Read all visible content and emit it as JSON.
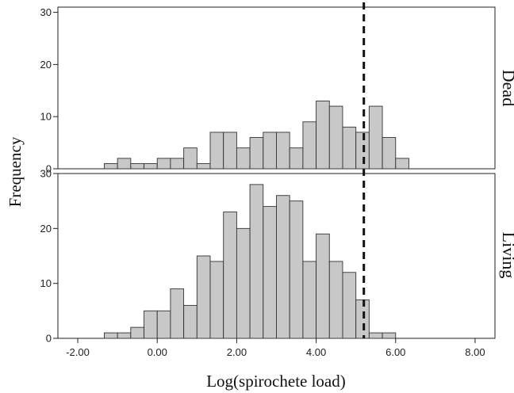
{
  "chart_data": {
    "type": "bar",
    "subtype": "histogram",
    "xlabel": "Log(spirochete load)",
    "ylabel": "Frequency",
    "xlim": [
      -2.5,
      8.5
    ],
    "x_ticks": [
      "-2.00",
      "0.00",
      "2.00",
      "4.00",
      "6.00",
      "8.00"
    ],
    "x_tick_values": [
      -2,
      0,
      2,
      4,
      6,
      8
    ],
    "bin_width": 0.333,
    "bin_starts": [
      -1.333,
      -1.0,
      -0.667,
      -0.333,
      0.0,
      0.333,
      0.667,
      1.0,
      1.333,
      1.667,
      2.0,
      2.333,
      2.667,
      3.0,
      3.333,
      3.667,
      4.0,
      4.333,
      4.667,
      5.0,
      5.333,
      5.667,
      6.0
    ],
    "threshold_line": {
      "x": 5.2,
      "style": "dashed"
    },
    "bar_color": "#c8c8c8",
    "grid": false,
    "panels": [
      {
        "name": "Dead",
        "ylim": [
          0,
          31
        ],
        "y_ticks": [
          "0",
          "10",
          "20",
          "30"
        ],
        "y_tick_values": [
          0,
          10,
          20,
          30
        ],
        "values": [
          1,
          2,
          1,
          1,
          2,
          2,
          4,
          1,
          7,
          7,
          4,
          6,
          7,
          7,
          4,
          9,
          13,
          12,
          8,
          7,
          12,
          6,
          2
        ]
      },
      {
        "name": "Living",
        "ylim": [
          0,
          30
        ],
        "y_ticks": [
          "0",
          "10",
          "20",
          "30"
        ],
        "y_tick_values": [
          0,
          10,
          20,
          30
        ],
        "values": [
          1,
          1,
          2,
          5,
          5,
          9,
          6,
          15,
          14,
          23,
          20,
          28,
          24,
          26,
          25,
          14,
          19,
          14,
          12,
          7,
          1,
          1,
          0
        ]
      }
    ]
  }
}
